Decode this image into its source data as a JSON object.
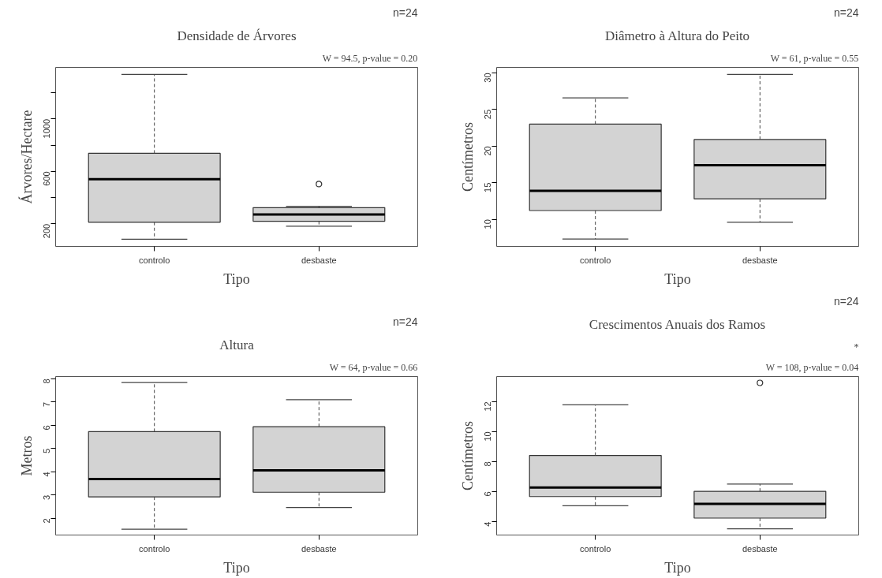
{
  "chart_data": [
    {
      "type": "box",
      "title": "Densidade de Árvores",
      "xlabel": "Tipo",
      "ylabel": "Árvores/Hectare",
      "annotations": [
        "n=24",
        "W = 94.5, p-value = 0.20"
      ],
      "categories": [
        "controlo",
        "desbaste"
      ],
      "grid": false,
      "ylim": [
        27,
        1394
      ],
      "yticks": [
        200,
        {
          "value": 400,
          "label": null
        },
        600,
        {
          "value": 800,
          "label": null
        },
        1000,
        {
          "value": 1200,
          "label": null
        }
      ],
      "boxes": [
        {
          "low": 82,
          "q1": 212,
          "median": 541,
          "q3": 738,
          "high": 1340
        },
        {
          "low": 181,
          "q1": 219,
          "median": 271,
          "q3": 323,
          "high": 333,
          "outliers": [
            503
          ]
        }
      ]
    },
    {
      "type": "box",
      "title": "Diâmetro à Altura do Peito",
      "xlabel": "Tipo",
      "ylabel": "Centímetros",
      "annotations": [
        "n=24",
        "W = 61, p-value = 0.55"
      ],
      "categories": [
        "controlo",
        "desbaste"
      ],
      "grid": false,
      "ylim": [
        6.3,
        30.75
      ],
      "yticks": [
        10,
        15,
        20,
        25,
        30
      ],
      "boxes": [
        {
          "low": 7.3,
          "q1": 11.2,
          "median": 13.9,
          "q3": 23.0,
          "high": 26.6
        },
        {
          "low": 9.6,
          "q1": 12.8,
          "median": 17.4,
          "q3": 20.9,
          "high": 29.8
        }
      ]
    },
    {
      "type": "box",
      "title": "Altura",
      "xlabel": "Tipo",
      "ylabel": "Metros",
      "annotations": [
        "n=24",
        "W = 64, p-value = 0.66"
      ],
      "categories": [
        "controlo",
        "desbaste"
      ],
      "grid": false,
      "ylim": [
        1.28,
        8.1
      ],
      "yticks": [
        2,
        3,
        4,
        5,
        6,
        7,
        8
      ],
      "boxes": [
        {
          "low": 1.53,
          "q1": 2.92,
          "median": 3.69,
          "q3": 5.73,
          "high": 7.84
        },
        {
          "low": 2.46,
          "q1": 3.12,
          "median": 4.06,
          "q3": 5.94,
          "high": 7.1
        }
      ]
    },
    {
      "type": "box",
      "title": "Crescimentos Anuais dos Ramos",
      "xlabel": "Tipo",
      "ylabel": "Centímetros",
      "annotations": [
        "n=24",
        "*",
        "W = 108, p-value = 0.04"
      ],
      "categories": [
        "controlo",
        "desbaste"
      ],
      "grid": false,
      "ylim": [
        3.11,
        13.67
      ],
      "yticks": [
        4,
        6,
        8,
        10,
        12
      ],
      "boxes": [
        {
          "low": 5.06,
          "q1": 5.67,
          "median": 6.27,
          "q3": 8.41,
          "high": 11.78
        },
        {
          "low": 3.52,
          "q1": 4.24,
          "median": 5.19,
          "q3": 6.02,
          "high": 6.51,
          "outliers": [
            13.25
          ]
        }
      ]
    }
  ]
}
